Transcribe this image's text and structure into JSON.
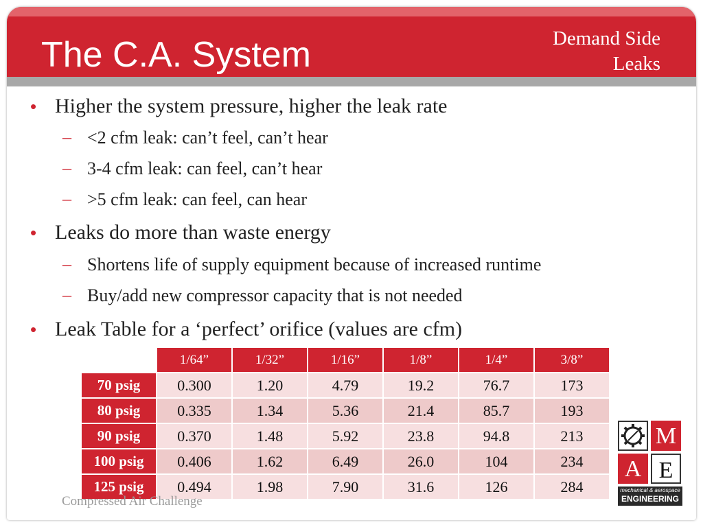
{
  "slide": {
    "title": "The C.A. System",
    "section_line1": "Demand Side",
    "section_line2": "Leaks",
    "footer": "Compressed Air Challenge"
  },
  "bullets": [
    {
      "text": "Higher the system pressure, higher the leak rate",
      "sub": [
        "<2 cfm leak: can’t feel, can’t hear",
        "3-4 cfm leak: can feel, can’t hear",
        ">5 cfm leak: can feel, can hear"
      ]
    },
    {
      "text": "Leaks do more than waste energy",
      "sub": [
        "Shortens life of supply equipment because of increased runtime",
        "Buy/add new compressor capacity that is not needed"
      ]
    },
    {
      "text": "Leak Table for a ‘perfect’ orifice (values are cfm)",
      "sub": []
    }
  ],
  "leak_table": {
    "columns": [
      "1/64”",
      "1/32”",
      "1/16”",
      "1/8”",
      "1/4”",
      "3/8”"
    ],
    "rows": [
      {
        "label": "70 psig",
        "values": [
          "0.300",
          "1.20",
          "4.79",
          "19.2",
          "76.7",
          "173"
        ]
      },
      {
        "label": "80 psig",
        "values": [
          "0.335",
          "1.34",
          "5.36",
          "21.4",
          "85.7",
          "193"
        ]
      },
      {
        "label": "90 psig",
        "values": [
          "0.370",
          "1.48",
          "5.92",
          "23.8",
          "94.8",
          "213"
        ]
      },
      {
        "label": "100 psig",
        "values": [
          "0.406",
          "1.62",
          "6.49",
          "26.0",
          "104",
          "234"
        ]
      },
      {
        "label": "125 psig",
        "values": [
          "0.494",
          "1.98",
          "7.90",
          "31.6",
          "126",
          "284"
        ]
      }
    ]
  },
  "logo": {
    "letter_m": "M",
    "letter_a": "A",
    "letter_e": "E",
    "caption_line1": "mechanical & aerospace",
    "caption_line2": "ENGINEERING",
    "icon": "gear-icon"
  },
  "colors": {
    "accent": "#cf2430",
    "header_top": "#e3636a",
    "divider": "#a8a8a8"
  }
}
